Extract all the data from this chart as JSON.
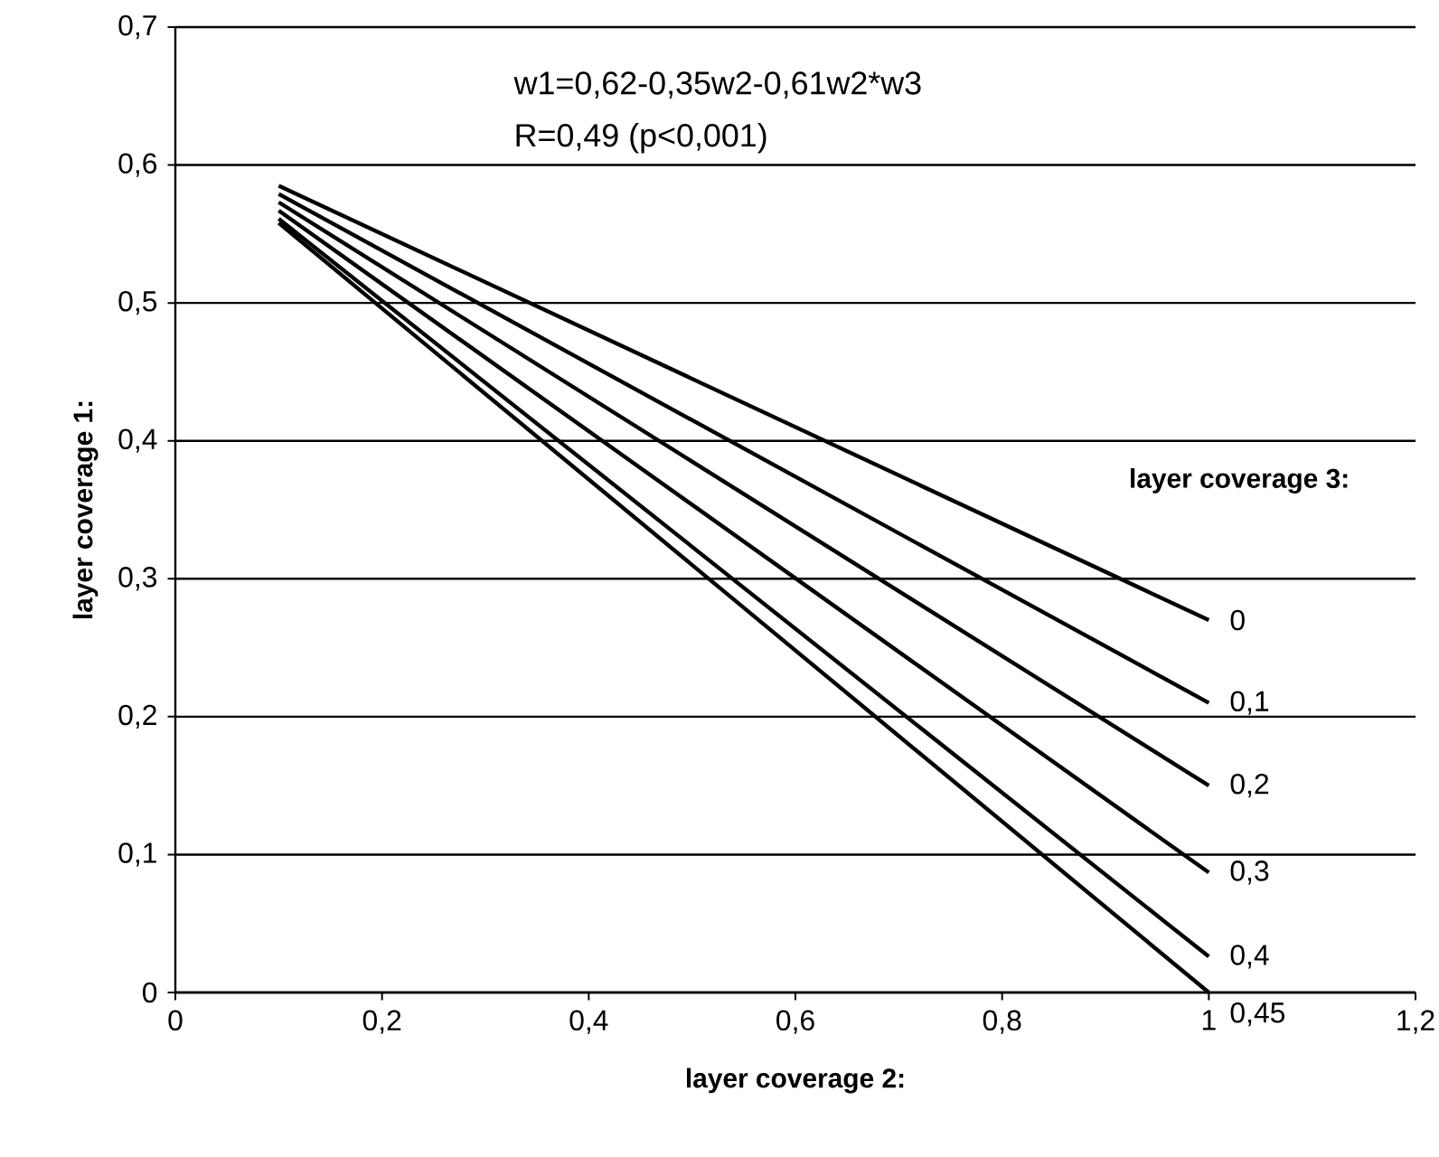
{
  "chart_data": {
    "type": "line",
    "x": [
      0.1,
      1
    ],
    "series": [
      {
        "name": "0",
        "color": "#000000",
        "values": [
          0.585,
          0.27
        ]
      },
      {
        "name": "0,1",
        "color": "#000000",
        "values": [
          0.579,
          0.21
        ]
      },
      {
        "name": "0,2",
        "color": "#000000",
        "values": [
          0.573,
          0.15
        ]
      },
      {
        "name": "0,3",
        "color": "#000000",
        "values": [
          0.567,
          0.087
        ]
      },
      {
        "name": "0,4",
        "color": "#000000",
        "values": [
          0.561,
          0.026
        ]
      },
      {
        "name": "0,45",
        "color": "#000000",
        "values": [
          0.558,
          0.0
        ]
      }
    ],
    "legend_title": "layer coverage 3:",
    "xlabel": "layer coverage 2:",
    "ylabel": "layer coverage 1:",
    "annotations": [
      "w1=0,62-0,35w2-0,61w2*w3",
      "R=0,49 (p<0,001)"
    ],
    "xlim": [
      0,
      1.2
    ],
    "ylim": [
      0,
      0.7
    ],
    "xticks": [
      0,
      {
        "value": 0.2,
        "label": "0,2"
      },
      {
        "value": 0.4,
        "label": "0,4"
      },
      {
        "value": 0.6,
        "label": "0,6"
      },
      {
        "value": 0.8,
        "label": "0,8"
      },
      1,
      {
        "value": 1.2,
        "label": "1,2"
      }
    ],
    "yticks": [
      0,
      {
        "value": 0.1,
        "label": "0,1"
      },
      {
        "value": 0.2,
        "label": "0,2"
      },
      {
        "value": 0.3,
        "label": "0,3"
      },
      {
        "value": 0.4,
        "label": "0,4"
      },
      {
        "value": 0.5,
        "label": "0,5"
      },
      {
        "value": 0.6,
        "label": "0,6"
      },
      {
        "value": 0.7,
        "label": "0,7"
      }
    ],
    "grid": "y",
    "marker": "none",
    "line_style": "solid"
  }
}
